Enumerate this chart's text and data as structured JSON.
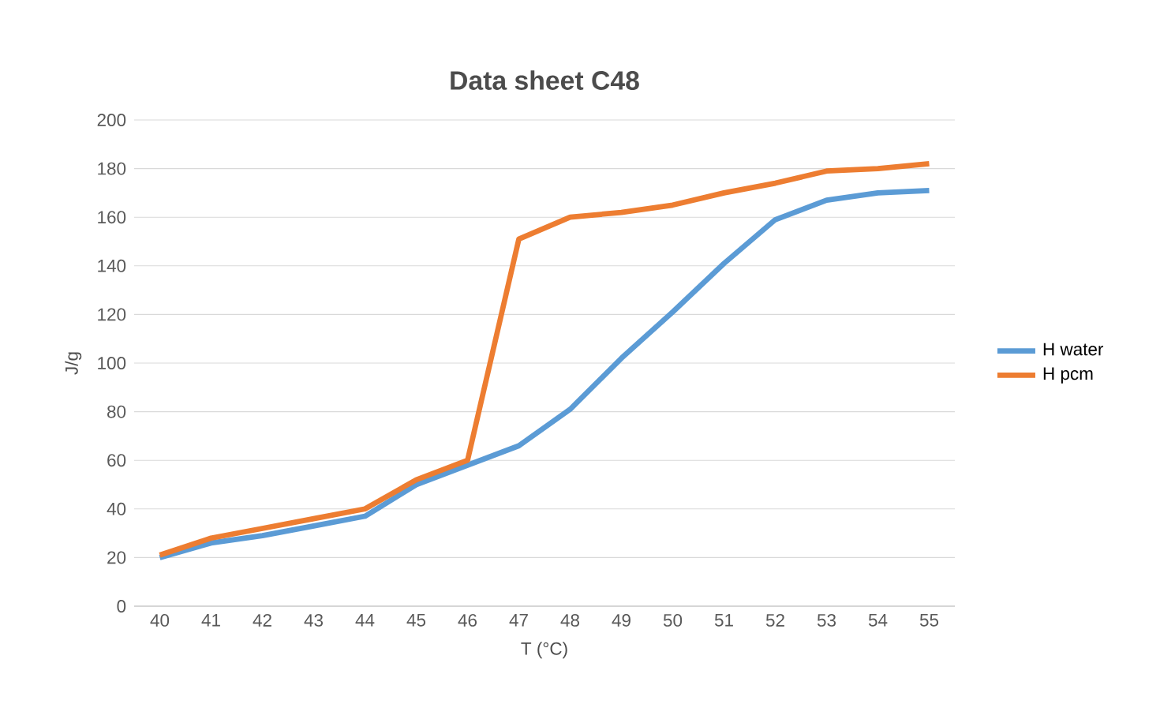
{
  "chart_data": {
    "type": "line",
    "title": "Data sheet C48",
    "xlabel": "T (°C)",
    "ylabel": "J/g",
    "categories": [
      "40",
      "41",
      "42",
      "43",
      "44",
      "45",
      "46",
      "47",
      "48",
      "49",
      "50",
      "51",
      "52",
      "53",
      "54",
      "55"
    ],
    "series": [
      {
        "name": "H water",
        "color": "#5b9bd5",
        "values": [
          20,
          26,
          29,
          33,
          37,
          50,
          58,
          66,
          81,
          102,
          121,
          141,
          159,
          167,
          170,
          171
        ]
      },
      {
        "name": "H pcm",
        "color": "#ed7d31",
        "values": [
          21,
          28,
          32,
          36,
          40,
          52,
          60,
          151,
          160,
          162,
          165,
          170,
          174,
          179,
          180,
          182
        ]
      }
    ],
    "ylim": [
      0,
      200
    ],
    "yticks": [
      0,
      20,
      40,
      60,
      80,
      100,
      120,
      140,
      160,
      180,
      200
    ],
    "grid": "y",
    "legend": "right",
    "marker": "none",
    "line_style": "solid"
  }
}
